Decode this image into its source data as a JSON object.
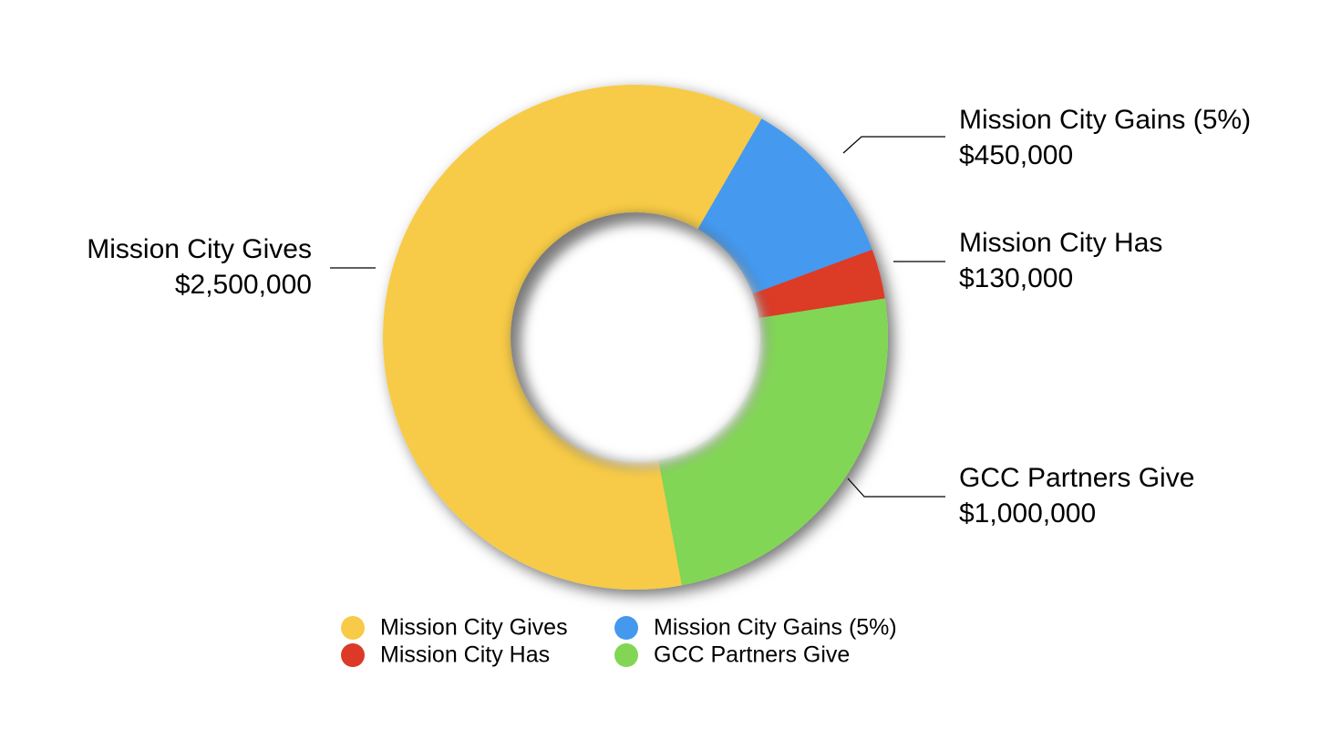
{
  "chart_data": {
    "type": "pie",
    "categories": [
      "Mission City Gives",
      "Mission City Gains (5%)",
      "Mission City Has",
      "GCC Partners Give"
    ],
    "values": [
      2500000,
      450000,
      130000,
      1000000
    ],
    "value_labels": [
      "$2,500,000",
      "$450,000",
      "$130,000",
      "$1,000,000"
    ],
    "colors": [
      "#f7cb47",
      "#4499ee",
      "#dc3a26",
      "#82d654"
    ]
  }
}
